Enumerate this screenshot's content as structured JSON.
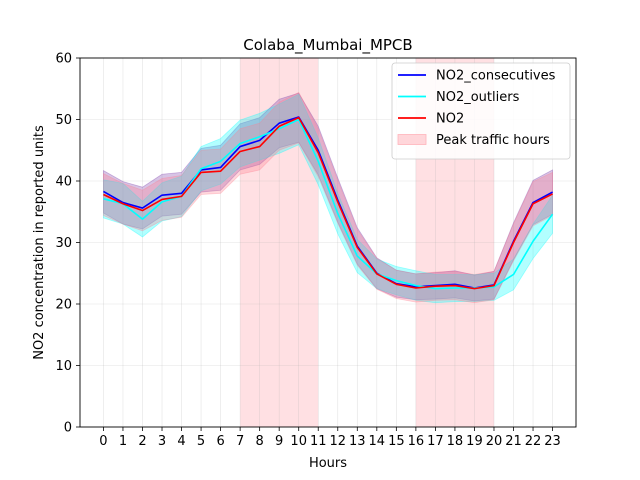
{
  "chart_data": {
    "type": "line",
    "title": "Colaba_Mumbai_MPCB",
    "xlabel": "Hours",
    "ylabel": "NO2 concentration in reported units",
    "xlim": [
      -1.2,
      24.2
    ],
    "ylim": [
      0,
      60
    ],
    "x": [
      0,
      1,
      2,
      3,
      4,
      5,
      6,
      7,
      8,
      9,
      10,
      11,
      12,
      13,
      14,
      15,
      16,
      17,
      18,
      19,
      20,
      21,
      22,
      23
    ],
    "yticks": [
      0,
      10,
      20,
      30,
      40,
      50,
      60
    ],
    "grid": true,
    "legend_position": "top-right",
    "shaded_regions": [
      {
        "name": "Peak traffic hours",
        "x_start": 7,
        "x_end": 11,
        "color": "#ffd6da"
      },
      {
        "name": "Peak traffic hours",
        "x_start": 16,
        "x_end": 20,
        "color": "#ffd6da"
      }
    ],
    "series": [
      {
        "name": "NO2_consecutives",
        "color": "#0000ff",
        "values": [
          38.3,
          36.5,
          35.6,
          37.7,
          38.0,
          41.8,
          42.2,
          45.6,
          46.6,
          49.4,
          50.4,
          45.0,
          36.9,
          29.4,
          25.0,
          23.3,
          22.8,
          23.0,
          23.2,
          22.6,
          23.1,
          30.2,
          36.5,
          38.2
        ],
        "lower": [
          34.8,
          33.0,
          32.2,
          34.3,
          34.6,
          38.2,
          38.5,
          41.8,
          42.7,
          45.4,
          46.3,
          41.0,
          33.3,
          26.5,
          22.5,
          21.1,
          20.7,
          20.8,
          21.0,
          20.5,
          20.8,
          27.2,
          32.9,
          34.6
        ],
        "upper": [
          41.7,
          39.9,
          39.0,
          41.1,
          41.4,
          45.3,
          45.8,
          49.3,
          50.3,
          53.3,
          54.3,
          48.9,
          40.5,
          32.4,
          27.5,
          25.5,
          24.9,
          25.1,
          25.4,
          24.7,
          25.3,
          33.2,
          40.1,
          41.8
        ],
        "band_color": "#7b3aa8"
      },
      {
        "name": "NO2_outliers",
        "color": "#00ffff",
        "values": [
          37.1,
          36.3,
          33.8,
          36.6,
          37.5,
          42.0,
          43.2,
          46.1,
          47.2,
          48.5,
          50.0,
          43.2,
          34.7,
          27.8,
          24.9,
          23.8,
          23.0,
          22.5,
          22.6,
          22.6,
          22.8,
          24.8,
          30.2,
          34.6
        ],
        "lower": [
          34.0,
          33.0,
          30.9,
          33.5,
          34.2,
          38.4,
          39.5,
          42.3,
          43.4,
          44.5,
          45.9,
          39.4,
          31.4,
          25.1,
          22.5,
          21.5,
          20.6,
          20.2,
          20.4,
          20.4,
          20.6,
          22.3,
          27.4,
          31.5
        ],
        "upper": [
          40.2,
          39.6,
          36.7,
          39.7,
          40.8,
          45.6,
          46.9,
          49.9,
          51.0,
          52.5,
          54.1,
          47.0,
          38.0,
          30.5,
          27.3,
          26.1,
          25.4,
          24.8,
          24.8,
          24.8,
          25.0,
          27.3,
          33.0,
          37.7
        ],
        "band_color": "#00ffff"
      },
      {
        "name": "NO2",
        "color": "#ff0000",
        "values": [
          37.8,
          36.3,
          35.2,
          37.0,
          37.5,
          41.4,
          41.6,
          44.8,
          45.6,
          48.9,
          50.3,
          44.6,
          36.6,
          29.2,
          24.9,
          23.2,
          22.6,
          22.9,
          23.0,
          22.5,
          23.0,
          30.0,
          36.3,
          37.9
        ],
        "lower": [
          34.4,
          33.0,
          31.9,
          33.6,
          34.1,
          37.8,
          38.0,
          41.1,
          41.8,
          45.0,
          46.2,
          40.7,
          33.1,
          26.3,
          22.4,
          20.9,
          20.3,
          20.6,
          20.7,
          20.2,
          20.7,
          27.0,
          32.7,
          34.4
        ],
        "upper": [
          41.2,
          39.6,
          38.5,
          40.4,
          40.9,
          45.0,
          45.2,
          48.5,
          49.4,
          52.8,
          54.4,
          48.5,
          40.1,
          32.1,
          27.4,
          25.5,
          24.9,
          25.2,
          25.3,
          24.8,
          25.3,
          33.0,
          39.9,
          41.4
        ],
        "band_color": "#ff7f8f"
      }
    ],
    "legend": [
      {
        "label": "NO2_consecutives",
        "kind": "line",
        "color": "#0000ff"
      },
      {
        "label": "NO2_outliers",
        "kind": "line",
        "color": "#00ffff"
      },
      {
        "label": "NO2",
        "kind": "line",
        "color": "#ff0000"
      },
      {
        "label": "Peak traffic hours",
        "kind": "patch",
        "color": "#ffd6da"
      }
    ]
  }
}
